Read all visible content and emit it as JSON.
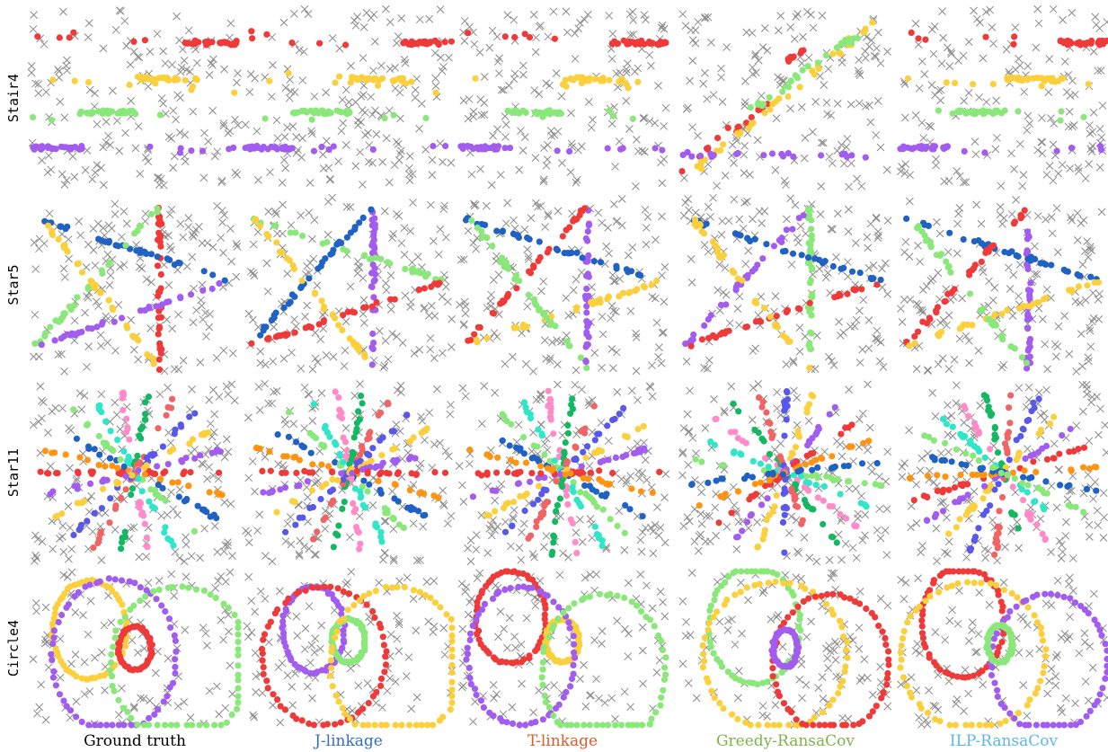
{
  "rows": [
    "Stair4",
    "Star5",
    "Star11",
    "Circle4"
  ],
  "columns": [
    {
      "label": "Ground truth",
      "color": "#000000"
    },
    {
      "label": "J-linkage",
      "color": "#2f6fc4"
    },
    {
      "label": "T-linkage",
      "color": "#e05a2a"
    },
    {
      "label": "Greedy-RansaCov",
      "color": "#7fb24a"
    },
    {
      "label": "ILP-RansaCov",
      "color": "#5fb6e8"
    }
  ],
  "palette": {
    "red": "#f03a3a",
    "yellow": "#fcd03c",
    "green": "#8ae87a",
    "purple": "#a25cf0",
    "blue": "#1f62c4",
    "orange": "#ff9412",
    "teal": "#2ee6c8",
    "pink": "#ff8cc8",
    "darkgreen": "#14b862",
    "salmon": "#f06464",
    "indigo": "#5a58e8",
    "outlier": "#8a8a8a"
  },
  "marker_legend": {
    "outlier_marker": "x-cross-icon",
    "inlier_marker": "filled-dot-icon"
  }
}
